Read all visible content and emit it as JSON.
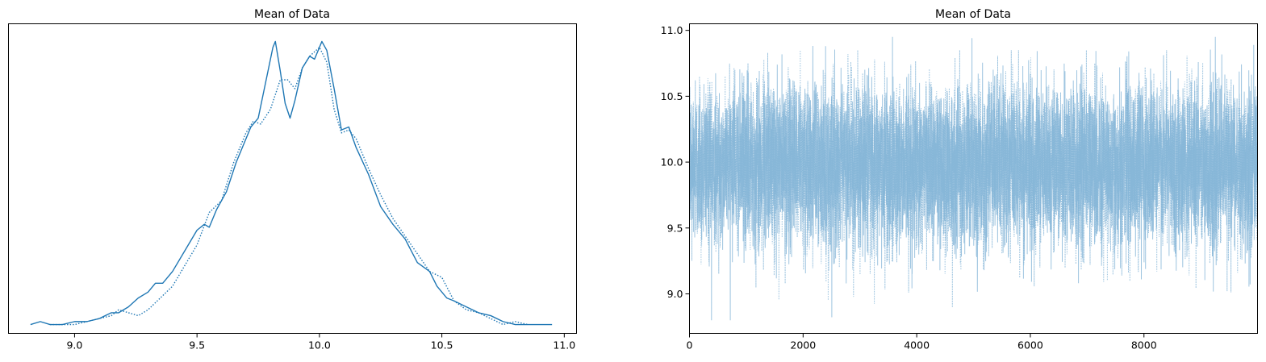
{
  "chart_data": [
    {
      "type": "line",
      "title": "Mean of Data",
      "xlabel": "",
      "ylabel": "",
      "xlim": [
        8.73,
        11.05
      ],
      "ylim": [
        -0.03,
        1.02
      ],
      "yticks_visible": false,
      "xticks": [
        "9.0",
        "9.5",
        "10.0",
        "10.5",
        "11.0"
      ],
      "grid": false,
      "series": [
        {
          "style": "solid",
          "color": "#1f77b4",
          "x": [
            8.82,
            8.86,
            8.9,
            8.95,
            9.0,
            9.05,
            9.1,
            9.15,
            9.18,
            9.22,
            9.26,
            9.3,
            9.33,
            9.36,
            9.4,
            9.45,
            9.5,
            9.53,
            9.55,
            9.58,
            9.62,
            9.66,
            9.7,
            9.72,
            9.75,
            9.78,
            9.81,
            9.82,
            9.84,
            9.86,
            9.88,
            9.9,
            9.93,
            9.96,
            9.98,
            10.01,
            10.03,
            10.06,
            10.09,
            10.12,
            10.15,
            10.2,
            10.25,
            10.3,
            10.35,
            10.4,
            10.45,
            10.48,
            10.52,
            10.55,
            10.6,
            10.65,
            10.7,
            10.75,
            10.8,
            10.85,
            10.9,
            10.95
          ],
          "y": [
            0.0,
            0.01,
            0.0,
            0.0,
            0.01,
            0.01,
            0.02,
            0.04,
            0.04,
            0.06,
            0.09,
            0.11,
            0.14,
            0.14,
            0.18,
            0.25,
            0.32,
            0.34,
            0.33,
            0.39,
            0.45,
            0.55,
            0.63,
            0.67,
            0.7,
            0.82,
            0.94,
            0.96,
            0.86,
            0.75,
            0.7,
            0.76,
            0.87,
            0.91,
            0.9,
            0.96,
            0.93,
            0.8,
            0.66,
            0.67,
            0.6,
            0.51,
            0.4,
            0.34,
            0.29,
            0.21,
            0.18,
            0.13,
            0.09,
            0.08,
            0.06,
            0.04,
            0.03,
            0.01,
            0.0,
            0.0,
            0.0,
            0.0
          ]
        },
        {
          "style": "dotted",
          "color": "#1f77b4",
          "x": [
            8.9,
            8.95,
            9.0,
            9.05,
            9.1,
            9.15,
            9.18,
            9.22,
            9.26,
            9.3,
            9.35,
            9.4,
            9.45,
            9.5,
            9.55,
            9.6,
            9.65,
            9.7,
            9.73,
            9.76,
            9.8,
            9.84,
            9.87,
            9.9,
            9.93,
            9.96,
            10.0,
            10.03,
            10.06,
            10.09,
            10.12,
            10.15,
            10.2,
            10.25,
            10.3,
            10.35,
            10.4,
            10.45,
            10.5,
            10.55,
            10.6,
            10.65,
            10.7,
            10.75,
            10.8,
            10.85
          ],
          "y": [
            0.0,
            0.0,
            0.0,
            0.01,
            0.02,
            0.03,
            0.05,
            0.04,
            0.03,
            0.05,
            0.09,
            0.13,
            0.2,
            0.27,
            0.38,
            0.42,
            0.55,
            0.65,
            0.69,
            0.68,
            0.73,
            0.83,
            0.83,
            0.8,
            0.87,
            0.91,
            0.94,
            0.89,
            0.73,
            0.65,
            0.66,
            0.63,
            0.53,
            0.44,
            0.36,
            0.3,
            0.24,
            0.18,
            0.16,
            0.08,
            0.05,
            0.04,
            0.02,
            0.0,
            0.01,
            0.0
          ]
        }
      ]
    },
    {
      "type": "line",
      "title": "Mean of Data",
      "xlabel": "",
      "ylabel": "",
      "xlim": [
        0,
        9999
      ],
      "ylim": [
        8.7,
        11.05
      ],
      "xticks": [
        "0",
        "2000",
        "4000",
        "6000",
        "8000"
      ],
      "yticks": [
        "9.0",
        "9.5",
        "10.0",
        "10.5",
        "11.0"
      ],
      "grid": false,
      "series": [
        {
          "style": "solid",
          "color": "#7fb2d6",
          "mean": 9.98,
          "std": 0.3,
          "n": 10000,
          "min": 8.8,
          "max": 10.95
        },
        {
          "style": "dotted",
          "color": "#7fb2d6",
          "mean": 9.98,
          "std": 0.3,
          "n": 10000,
          "min": 8.85,
          "max": 10.85
        }
      ]
    }
  ]
}
